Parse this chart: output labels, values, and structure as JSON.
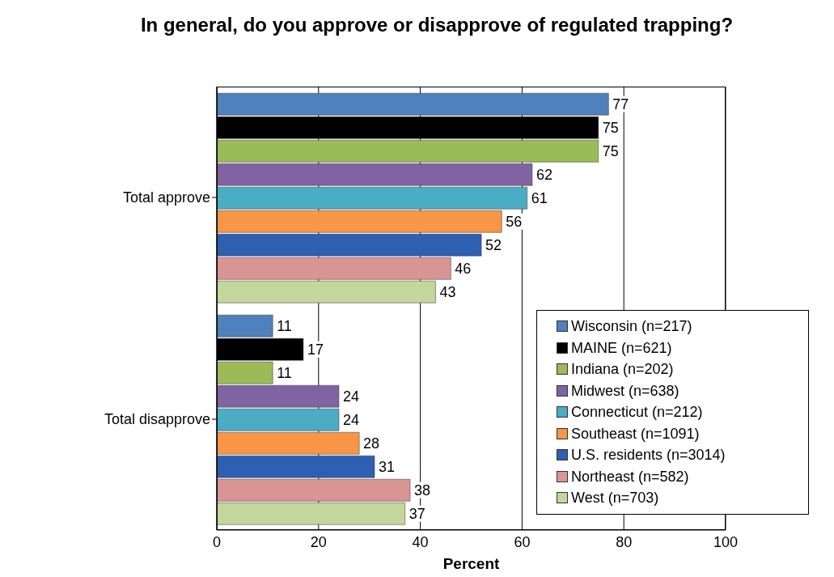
{
  "chart_data": {
    "type": "bar",
    "orientation": "horizontal",
    "title": "In general, do you approve or disapprove of regulated trapping?",
    "xlabel": "Percent",
    "categories": [
      "Total approve",
      "Total disapprove"
    ],
    "series": [
      {
        "name": "Wisconsin (n=217)",
        "color": "#4f81bd",
        "values": [
          77,
          11
        ]
      },
      {
        "name": "MAINE (n=621)",
        "color": "#000000",
        "values": [
          75,
          17
        ]
      },
      {
        "name": "Indiana (n=202)",
        "color": "#9bbb59",
        "values": [
          75,
          11
        ]
      },
      {
        "name": "Midwest (n=638)",
        "color": "#8064a2",
        "values": [
          62,
          24
        ]
      },
      {
        "name": "Connecticut (n=212)",
        "color": "#4bacc6",
        "values": [
          61,
          24
        ]
      },
      {
        "name": "Southeast (n=1091)",
        "color": "#f79646",
        "values": [
          56,
          28
        ]
      },
      {
        "name": "U.S. residents (n=3014)",
        "color": "#2f5fb0",
        "values": [
          52,
          31
        ]
      },
      {
        "name": "Northeast (n=582)",
        "color": "#d99594",
        "values": [
          46,
          38
        ]
      },
      {
        "name": "West (n=703)",
        "color": "#c3d69b",
        "values": [
          43,
          37
        ]
      }
    ],
    "xlim": [
      0,
      100
    ],
    "xticks": [
      0,
      20,
      40,
      60,
      80,
      100
    ],
    "grid": "x",
    "legend": "bottom right",
    "data_labels": true
  }
}
